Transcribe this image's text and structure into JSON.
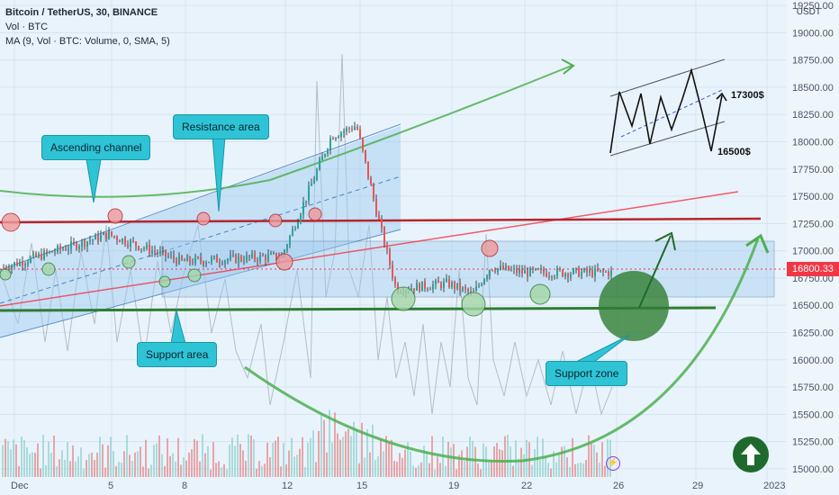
{
  "header": {
    "title": "Bitcoin / TetherUS, 30, BINANCE",
    "vol_line": "Vol · BTC",
    "ma_line": "MA (9, Vol · BTC: Volume, 0, SMA, 5)",
    "currency": "USDT"
  },
  "price_tag": "16800.33",
  "callouts": {
    "ascending_channel": "Ascending channel",
    "resistance_area": "Resistance area",
    "support_area": "Support area",
    "support_zone": "Support zone"
  },
  "inset_labels": {
    "upper": "17300$",
    "lower": "16500$"
  },
  "colors": {
    "callout_fill": "#2ec4d6",
    "support_green": "#2e7d32",
    "resistance_red": "#b3262e",
    "price_tag": "#f23645",
    "curve_green": "#4caf50"
  },
  "chart_data": {
    "type": "candlestick",
    "y_axis": {
      "ticks": [
        "19250.00",
        "19000.00",
        "18750.00",
        "18500.00",
        "18250.00",
        "18000.00",
        "17750.00",
        "17500.00",
        "17250.00",
        "17000.00",
        "16750.00",
        "16500.00",
        "16250.00",
        "16000.00",
        "15750.00",
        "15500.00",
        "15250.00",
        "15000.00"
      ],
      "range": [
        14900,
        19300
      ]
    },
    "x_axis": {
      "ticks": [
        "Dec",
        "5",
        "8",
        "12",
        "15",
        "19",
        "22",
        "26",
        "29",
        "2023"
      ]
    },
    "price_path": [
      {
        "x": "Dec",
        "y": 16850
      },
      {
        "x": "5",
        "y": 17150
      },
      {
        "x": "8",
        "y": 16900
      },
      {
        "x": "12",
        "y": 16950
      },
      {
        "x": "14",
        "y": 18050
      },
      {
        "x": "15",
        "y": 18150
      },
      {
        "x": "16",
        "y": 17300
      },
      {
        "x": "17",
        "y": 16650
      },
      {
        "x": "19",
        "y": 16700
      },
      {
        "x": "20",
        "y": 16600
      },
      {
        "x": "21",
        "y": 16850
      },
      {
        "x": "22",
        "y": 16800
      },
      {
        "x": "25",
        "y": 16800
      }
    ],
    "levels": {
      "resistance": 17250,
      "support": 16500,
      "current": 16800.33
    }
  }
}
